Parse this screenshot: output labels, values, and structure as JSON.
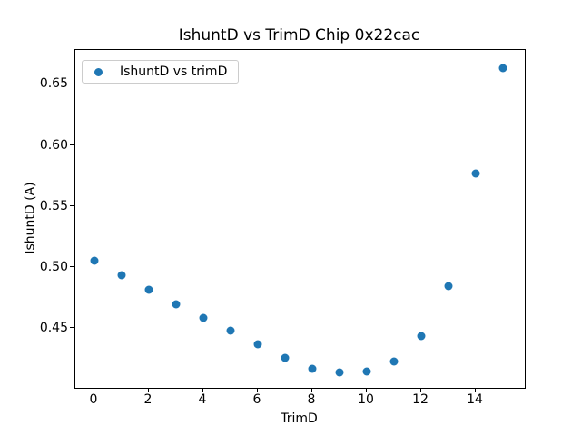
{
  "chart_data": {
    "type": "scatter",
    "title": "IshuntD vs TrimD Chip 0x22cac",
    "xlabel": "TrimD",
    "ylabel": "IshuntD (A)",
    "legend": {
      "position": "upper left",
      "entries": [
        "IshuntD vs trimD"
      ]
    },
    "x": [
      0,
      1,
      2,
      3,
      4,
      5,
      6,
      7,
      8,
      9,
      10,
      11,
      12,
      13,
      14,
      15
    ],
    "y": [
      0.506,
      0.494,
      0.482,
      0.47,
      0.459,
      0.448,
      0.437,
      0.426,
      0.417,
      0.414,
      0.415,
      0.423,
      0.444,
      0.485,
      0.577,
      0.664
    ],
    "xlim": [
      -0.7,
      15.8
    ],
    "ylim": [
      0.4013,
      0.6787
    ],
    "xticks": [
      0,
      2,
      4,
      6,
      8,
      10,
      12,
      14
    ],
    "xtick_labels": [
      "0",
      "2",
      "4",
      "6",
      "8",
      "10",
      "12",
      "14"
    ],
    "yticks": [
      0.45,
      0.5,
      0.55,
      0.6,
      0.65
    ],
    "ytick_labels": [
      "0.45",
      "0.50",
      "0.55",
      "0.60",
      "0.65"
    ],
    "marker_color": "#1f77b4",
    "background_color": "#ffffff",
    "grid": false
  }
}
